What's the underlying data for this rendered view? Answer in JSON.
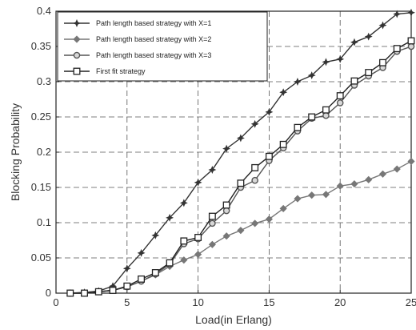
{
  "chart_data": {
    "type": "line",
    "title": "",
    "xlabel": "Load(in Erlang)",
    "ylabel": "Blocking Probability",
    "xlim": [
      0,
      25
    ],
    "ylim": [
      0,
      0.4
    ],
    "xticks": [
      "0",
      "5",
      "10",
      "15",
      "20",
      "25"
    ],
    "yticks": [
      "0",
      "0.05",
      "0.1",
      "0.15",
      "0.2",
      "0.25",
      "0.3",
      "0.35",
      "0.4"
    ],
    "grid": true,
    "legend_position": "top-left",
    "x": [
      1,
      2,
      3,
      4,
      5,
      6,
      7,
      8,
      9,
      10,
      11,
      12,
      13,
      14,
      15,
      16,
      17,
      18,
      19,
      20,
      21,
      22,
      23,
      24,
      25
    ],
    "series": [
      {
        "name": "Path length based strategy with X=1",
        "marker": "star",
        "color": "#333333",
        "values": [
          0,
          0.001,
          0.003,
          0.01,
          0.035,
          0.057,
          0.082,
          0.107,
          0.128,
          0.157,
          0.175,
          0.205,
          0.22,
          0.24,
          0.257,
          0.285,
          0.3,
          0.309,
          0.328,
          0.332,
          0.356,
          0.364,
          0.38,
          0.396,
          0.398
        ]
      },
      {
        "name": "Path length based strategy with X=2",
        "marker": "diamond",
        "color": "#777777",
        "values": [
          0,
          0,
          0.002,
          0.004,
          0.009,
          0.017,
          0.026,
          0.038,
          0.047,
          0.055,
          0.069,
          0.081,
          0.089,
          0.099,
          0.105,
          0.12,
          0.134,
          0.139,
          0.14,
          0.152,
          0.155,
          0.161,
          0.169,
          0.176,
          0.187
        ]
      },
      {
        "name": "Path length based strategy with X=3",
        "marker": "circle",
        "color": "#555555",
        "values": [
          0,
          0,
          0.002,
          0.004,
          0.009,
          0.017,
          0.027,
          0.041,
          0.07,
          0.077,
          0.099,
          0.117,
          0.15,
          0.16,
          0.188,
          0.206,
          0.23,
          0.248,
          0.252,
          0.27,
          0.295,
          0.308,
          0.32,
          0.343,
          0.35
        ]
      },
      {
        "name": "First fit strategy",
        "marker": "square",
        "color": "#222222",
        "values": [
          0,
          0,
          0.002,
          0.004,
          0.01,
          0.02,
          0.029,
          0.043,
          0.074,
          0.079,
          0.109,
          0.125,
          0.156,
          0.178,
          0.194,
          0.211,
          0.235,
          0.25,
          0.26,
          0.28,
          0.301,
          0.313,
          0.327,
          0.347,
          0.358
        ]
      }
    ]
  }
}
